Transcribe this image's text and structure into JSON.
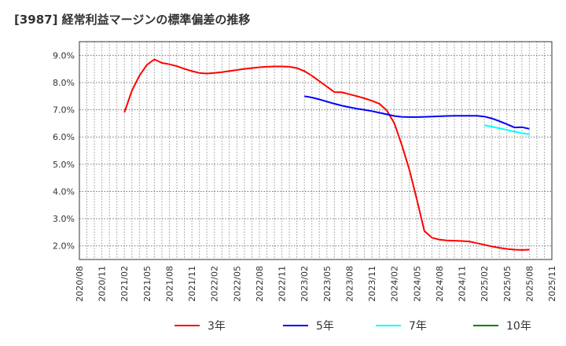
{
  "title": "[3987]  経常利益マージンの標準偏差の推移",
  "chart_data": {
    "type": "line",
    "title": "[3987]  経常利益マージンの標準偏差の推移",
    "xlabel": "",
    "ylabel": "",
    "ylim": [
      1.5,
      9.5
    ],
    "yticks": [
      2.0,
      3.0,
      4.0,
      5.0,
      6.0,
      7.0,
      8.0,
      9.0
    ],
    "ytick_labels": [
      "2.0%",
      "3.0%",
      "4.0%",
      "5.0%",
      "6.0%",
      "7.0%",
      "8.0%",
      "9.0%"
    ],
    "x_start": "2020/08",
    "x_end": "2025/11",
    "xtick_labels": [
      "2020/08",
      "2020/11",
      "2021/02",
      "2021/05",
      "2021/08",
      "2021/11",
      "2022/02",
      "2022/05",
      "2022/08",
      "2022/11",
      "2023/02",
      "2023/05",
      "2023/08",
      "2023/11",
      "2024/02",
      "2024/05",
      "2024/08",
      "2024/11",
      "2025/02",
      "2025/05",
      "2025/08",
      "2025/11"
    ],
    "grid": true,
    "legend": "bottom",
    "series": [
      {
        "name": "3年",
        "color": "#ff0000",
        "start": "2021/02",
        "values": [
          6.9,
          7.7,
          8.25,
          8.65,
          8.85,
          8.72,
          8.67,
          8.6,
          8.5,
          8.42,
          8.35,
          8.33,
          8.35,
          8.38,
          8.42,
          8.46,
          8.5,
          8.53,
          8.56,
          8.58,
          8.59,
          8.59,
          8.58,
          8.53,
          8.42,
          8.25,
          8.05,
          7.85,
          7.65,
          7.64,
          7.57,
          7.5,
          7.42,
          7.33,
          7.22,
          6.97,
          6.5,
          5.7,
          4.8,
          3.7,
          2.55,
          2.3,
          2.23,
          2.2,
          2.19,
          2.18,
          2.16,
          2.1,
          2.04,
          1.98,
          1.93,
          1.89,
          1.86,
          1.85,
          1.86
        ]
      },
      {
        "name": "5年",
        "color": "#0000ff",
        "start": "2023/02",
        "values": [
          7.5,
          7.45,
          7.38,
          7.3,
          7.22,
          7.15,
          7.09,
          7.04,
          7.0,
          6.95,
          6.89,
          6.83,
          6.77,
          6.74,
          6.73,
          6.73,
          6.74,
          6.75,
          6.76,
          6.77,
          6.78,
          6.78,
          6.78,
          6.78,
          6.75,
          6.68,
          6.58,
          6.47,
          6.35,
          6.36,
          6.3
        ]
      },
      {
        "name": "7年",
        "color": "#00ffff",
        "start": "2025/02",
        "values": [
          6.43,
          6.38,
          6.32,
          6.26,
          6.2,
          6.14,
          6.1
        ]
      },
      {
        "name": "10年",
        "color": "#008000",
        "start": "2025/08",
        "values": []
      }
    ]
  }
}
